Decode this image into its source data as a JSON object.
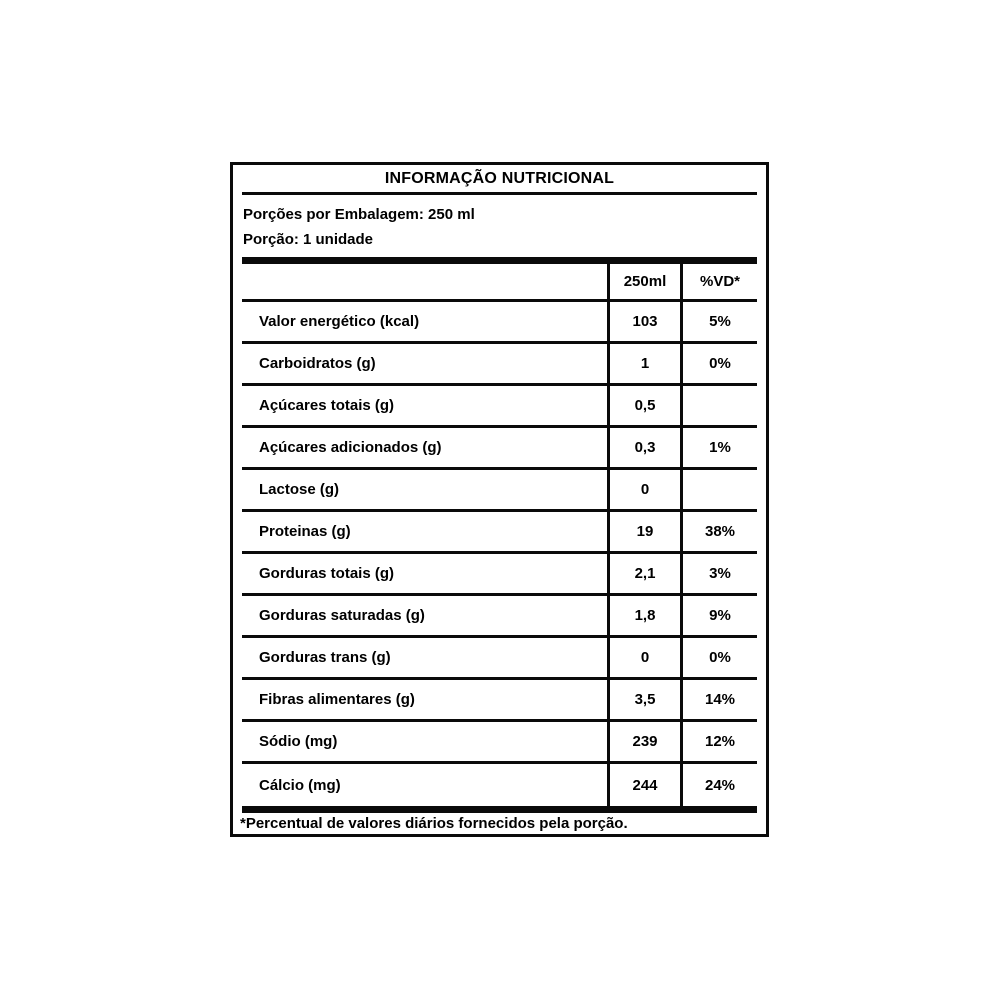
{
  "label": {
    "title": "INFORMAÇÃO NUTRICIONAL",
    "servings_per_package": "Porções por Embalagem: 250 ml",
    "serving_size": "Porção: 1 unidade",
    "columns": {
      "amount": "250ml",
      "daily_value": "%VD*"
    },
    "rows": [
      {
        "nutrient": "Valor energético (kcal)",
        "amount": "103",
        "dv": "5%"
      },
      {
        "nutrient": "Carboidratos (g)",
        "amount": "1",
        "dv": "0%"
      },
      {
        "nutrient": "Açúcares totais (g)",
        "amount": "0,5",
        "dv": ""
      },
      {
        "nutrient": "Açúcares adicionados (g)",
        "amount": "0,3",
        "dv": "1%"
      },
      {
        "nutrient": "Lactose (g)",
        "amount": "0",
        "dv": ""
      },
      {
        "nutrient": "Proteinas (g)",
        "amount": "19",
        "dv": "38%"
      },
      {
        "nutrient": "Gorduras totais (g)",
        "amount": "2,1",
        "dv": "3%"
      },
      {
        "nutrient": "Gorduras saturadas (g)",
        "amount": "1,8",
        "dv": "9%"
      },
      {
        "nutrient": "Gorduras trans (g)",
        "amount": "0",
        "dv": "0%"
      },
      {
        "nutrient": "Fibras alimentares (g)",
        "amount": "3,5",
        "dv": "14%"
      },
      {
        "nutrient": "Sódio (mg)",
        "amount": "239",
        "dv": "12%"
      },
      {
        "nutrient": "Cálcio (mg)",
        "amount": "244",
        "dv": "24%"
      }
    ],
    "footnote": "*Percentual de valores diários fornecidos pela porção.",
    "colors": {
      "border": "#0a0a0a",
      "background": "#ffffff",
      "text": "#000000"
    }
  }
}
